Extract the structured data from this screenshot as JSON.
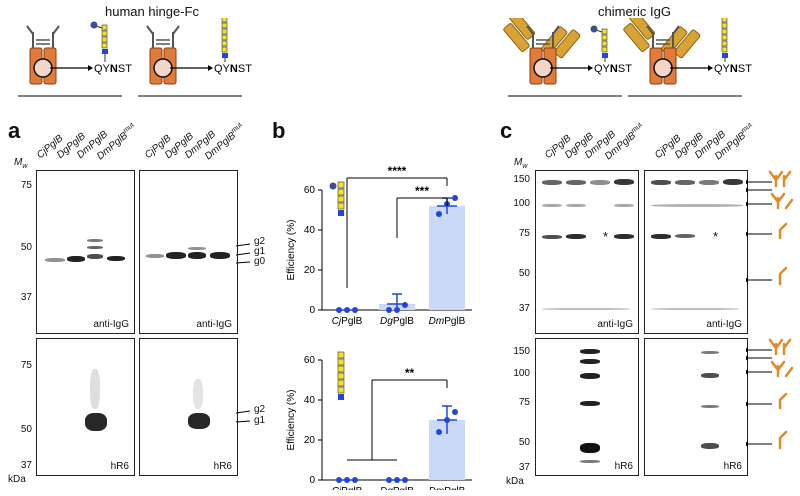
{
  "headers": {
    "left": "human hinge-Fc",
    "right": "chimeric IgG"
  },
  "construct_seq": "QYNST",
  "panel_labels": {
    "a": "a",
    "b": "b",
    "c": "c"
  },
  "lanes": [
    "CjPglB",
    "DgPglB",
    "DmPglB",
    "DmPglB"
  ],
  "lanes_sup": "mut",
  "mw_label": "M",
  "mw_sub": "w",
  "kda": "kDa",
  "panel_a": {
    "top_markers": [
      "75",
      "50",
      "37"
    ],
    "bottom_markers": [
      "75",
      "50",
      "37"
    ],
    "top_label": "anti-IgG",
    "bottom_label": "hR6",
    "glyco_top": [
      "g2",
      "g1",
      "g0"
    ],
    "glyco_bottom": [
      "g2",
      "g1"
    ]
  },
  "panel_c": {
    "top_markers": [
      "150",
      "100",
      "75",
      "50",
      "37"
    ],
    "bottom_markers": [
      "150",
      "100",
      "75",
      "50",
      "37"
    ],
    "top_label": "anti-IgG",
    "bottom_label": "hR6",
    "asterisk": "*"
  },
  "chart_data": [
    {
      "type": "bar",
      "categories": [
        "CjPglB",
        "DgPglB",
        "DmPglB"
      ],
      "ylabel": "Efficiency (%)",
      "ylim": [
        0,
        60
      ],
      "yticks": [
        "0",
        "20",
        "40",
        "60"
      ],
      "values": [
        0,
        3,
        52
      ],
      "errors": [
        0,
        5,
        4
      ],
      "points": [
        [
          0,
          0,
          0
        ],
        [
          0,
          0,
          2.5
        ],
        [
          48,
          53,
          56
        ]
      ],
      "significance": [
        {
          "label": "****",
          "from": "CjPglB",
          "to": "DmPglB"
        },
        {
          "label": "***",
          "from": "DgPglB",
          "to": "DmPglB"
        }
      ],
      "colors": {
        "bar": "#c9d9f7",
        "point": "#2346d8"
      }
    },
    {
      "type": "bar",
      "categories": [
        "CjPglB",
        "DgPglB",
        "DmPglB"
      ],
      "ylabel": "Efficiency (%)",
      "ylim": [
        0,
        60
      ],
      "yticks": [
        "0",
        "20",
        "40",
        "60"
      ],
      "values": [
        0,
        0,
        30
      ],
      "errors": [
        0,
        0,
        7
      ],
      "points": [
        [
          0,
          0,
          0
        ],
        [
          0,
          0,
          0
        ],
        [
          24,
          30,
          34
        ]
      ],
      "significance": [
        {
          "label": "**",
          "from": "CjPglB+DgPglB",
          "to": "DmPglB"
        }
      ],
      "colors": {
        "bar": "#c9d9f7",
        "point": "#2346d8"
      }
    }
  ]
}
